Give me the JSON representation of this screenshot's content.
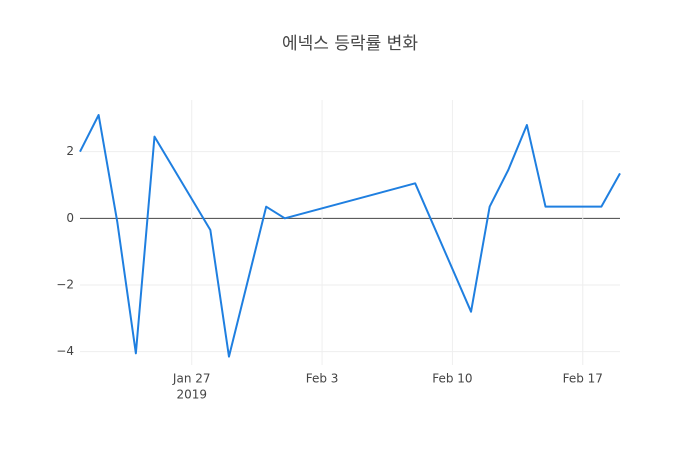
{
  "chart_data": {
    "type": "line",
    "title": "에넥스 등락률 변화",
    "x": [
      "2019-01-21",
      "2019-01-22",
      "2019-01-23",
      "2019-01-24",
      "2019-01-25",
      "2019-01-28",
      "2019-01-29",
      "2019-01-31",
      "2019-02-01",
      "2019-02-08",
      "2019-02-11",
      "2019-02-12",
      "2019-02-13",
      "2019-02-14",
      "2019-02-15",
      "2019-02-18",
      "2019-02-19"
    ],
    "series": [
      {
        "color": "#1f7fe0",
        "values": [
          2.0,
          3.1,
          -0.1,
          -4.05,
          2.45,
          -0.35,
          -4.15,
          0.35,
          0.0,
          1.05,
          -2.8,
          0.35,
          1.45,
          2.8,
          0.35,
          0.35,
          1.35
        ]
      }
    ],
    "xlim": [
      "2019-01-21",
      "2019-02-19"
    ],
    "xticks": [
      {
        "value": "2019-01-27",
        "label": "Jan 27"
      },
      {
        "value": "2019-02-03",
        "label": "Feb 3"
      },
      {
        "value": "2019-02-10",
        "label": "Feb 10"
      },
      {
        "value": "2019-02-17",
        "label": "Feb 17"
      }
    ],
    "xaxis_year": "2019",
    "ylim": [
      -4.4,
      3.55
    ],
    "yticks": [
      {
        "value": -4,
        "label": "−4"
      },
      {
        "value": -2,
        "label": "−2"
      },
      0,
      2
    ],
    "grid": true,
    "zeroline": true
  }
}
